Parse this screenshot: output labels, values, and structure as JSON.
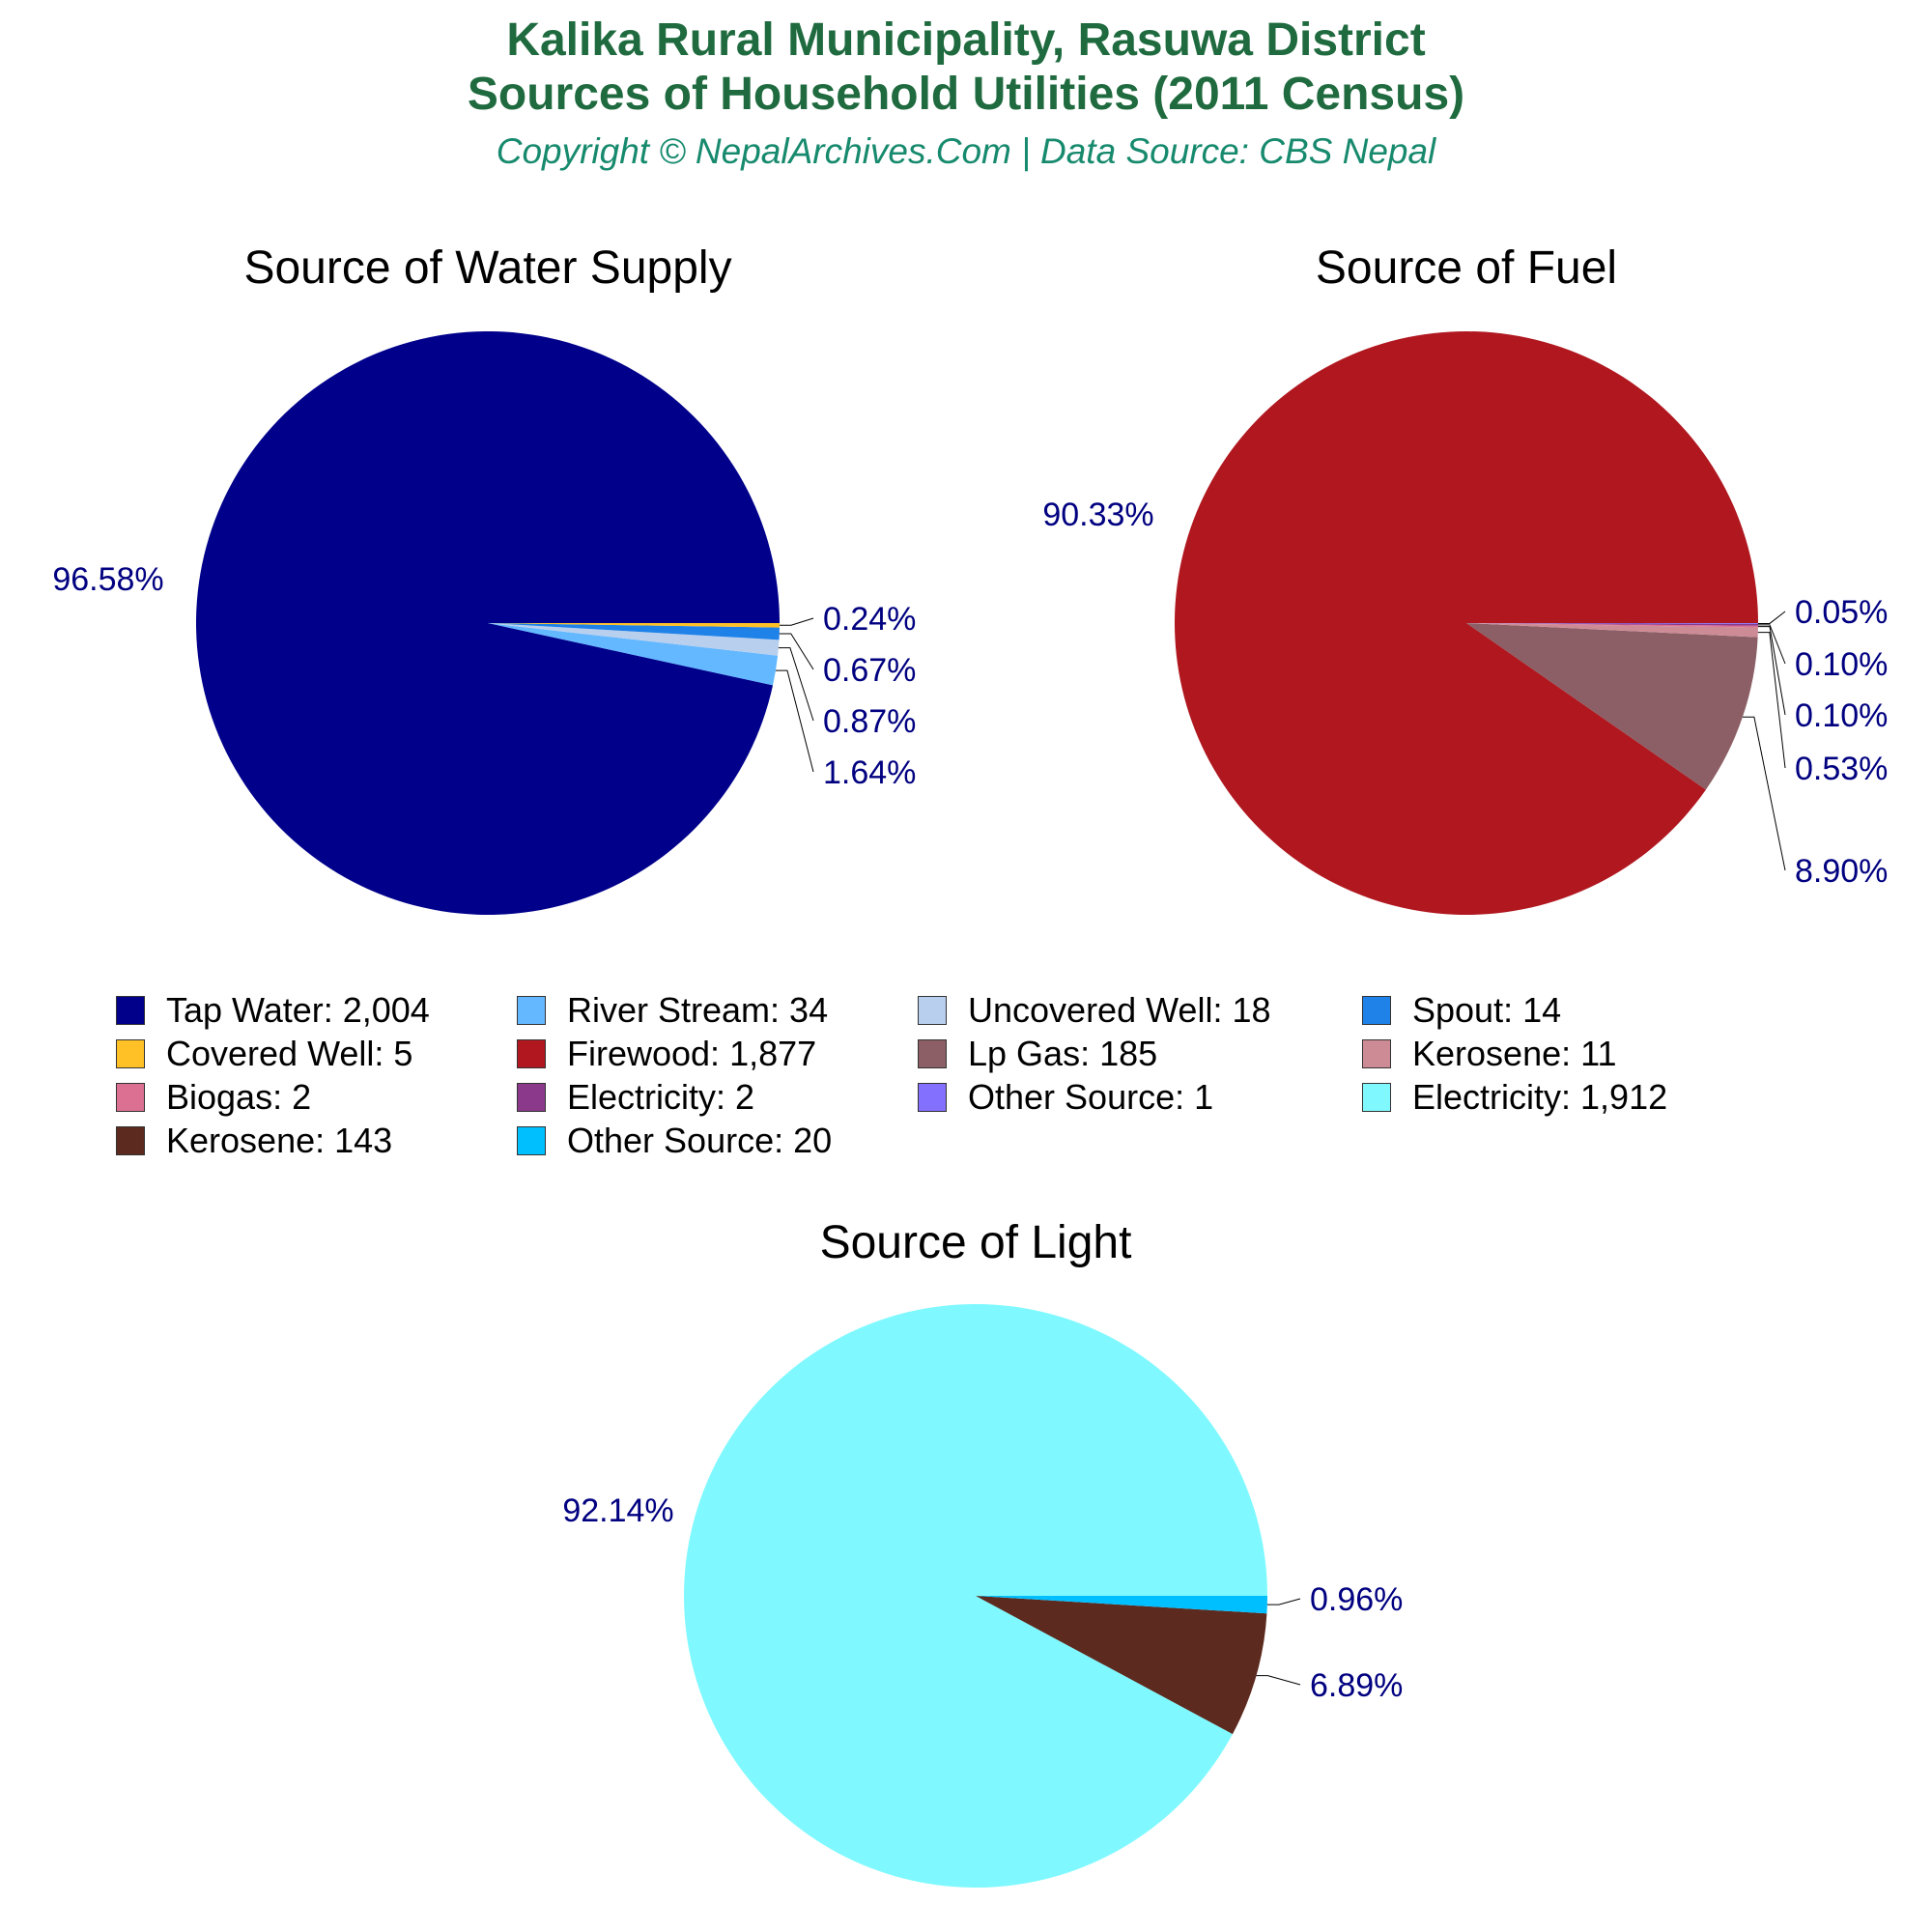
{
  "header": {
    "title_line_1": "Kalika Rural Municipality, Rasuwa District",
    "title_line_2": "Sources of Household Utilities (2011 Census)",
    "subtitle": "Copyright © NepalArchives.Com | Data Source: CBS Nepal"
  },
  "colors": {
    "title": "#1f6b3f",
    "subtitle": "#178a6e",
    "percent_label": "#000080"
  },
  "chart_data": [
    {
      "type": "pie",
      "title": "Source of Water Supply",
      "big_label": "96.58%",
      "slices": [
        {
          "name": "Tap Water",
          "value": 2004,
          "color": "#00008b"
        },
        {
          "name": "River Stream",
          "value": 34,
          "color": "#63b8ff",
          "label": "1.64%"
        },
        {
          "name": "Uncovered Well",
          "value": 18,
          "color": "#b9cfee",
          "label": "0.87%"
        },
        {
          "name": "Spout",
          "value": 14,
          "color": "#1e82e8",
          "label": "0.67%"
        },
        {
          "name": "Covered Well",
          "value": 5,
          "color": "#ffc125",
          "label": "0.24%"
        }
      ]
    },
    {
      "type": "pie",
      "title": "Source of Fuel",
      "big_label": "90.33%",
      "slices": [
        {
          "name": "Firewood",
          "value": 1877,
          "color": "#b0171f"
        },
        {
          "name": "Lp Gas",
          "value": 185,
          "color": "#8b5f65",
          "label": "8.90%"
        },
        {
          "name": "Kerosene",
          "value": 11,
          "color": "#cd8c95",
          "label": "0.53%"
        },
        {
          "name": "Biogas",
          "value": 2,
          "color": "#db7093",
          "label": "0.10%"
        },
        {
          "name": "Electricity",
          "value": 2,
          "color": "#8b3a8b",
          "label": "0.10%"
        },
        {
          "name": "Other Source",
          "value": 1,
          "color": "#8470ff",
          "label": "0.05%"
        }
      ]
    },
    {
      "type": "pie",
      "title": "Source of Light",
      "big_label": "92.14%",
      "slices": [
        {
          "name": "Electricity",
          "value": 1912,
          "color": "#7ff9ff"
        },
        {
          "name": "Kerosene",
          "value": 143,
          "color": "#5c2a1e",
          "label": "6.89%"
        },
        {
          "name": "Other Source",
          "value": 20,
          "color": "#00bfff",
          "label": "0.96%"
        }
      ]
    }
  ],
  "legend": [
    {
      "label": "Tap Water: 2,004",
      "color": "#00008b"
    },
    {
      "label": "River Stream: 34",
      "color": "#63b8ff"
    },
    {
      "label": "Uncovered Well: 18",
      "color": "#b9cfee"
    },
    {
      "label": "Spout: 14",
      "color": "#1e82e8"
    },
    {
      "label": "Covered Well: 5",
      "color": "#ffc125"
    },
    {
      "label": "Firewood: 1,877",
      "color": "#b0171f"
    },
    {
      "label": "Lp Gas: 185",
      "color": "#8b5f65"
    },
    {
      "label": "Kerosene: 11",
      "color": "#cd8c95"
    },
    {
      "label": "Biogas: 2",
      "color": "#db7093"
    },
    {
      "label": "Electricity: 2",
      "color": "#8b3a8b"
    },
    {
      "label": "Other Source: 1",
      "color": "#8470ff"
    },
    {
      "label": "Electricity: 1,912",
      "color": "#7ff9ff"
    },
    {
      "label": "Kerosene: 143",
      "color": "#5c2a1e"
    },
    {
      "label": "Other Source: 20",
      "color": "#00bfff"
    }
  ]
}
